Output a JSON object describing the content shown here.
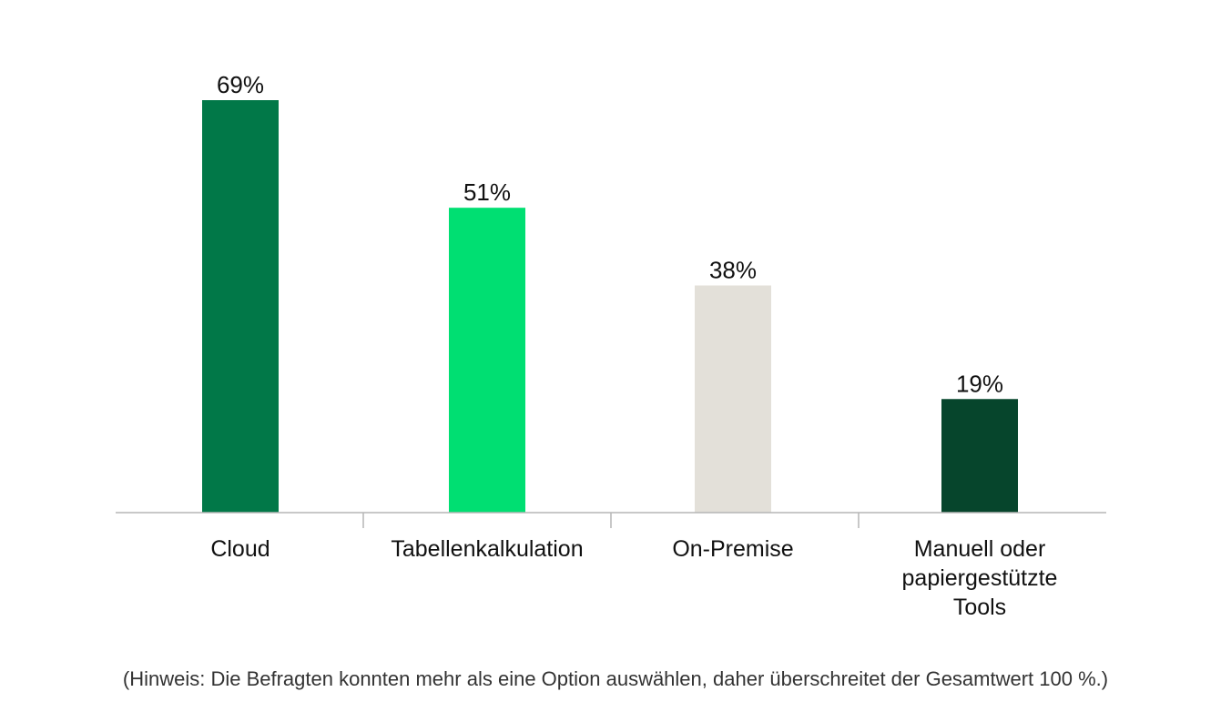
{
  "chart_data": {
    "type": "bar",
    "title": "",
    "xlabel": "",
    "ylabel": "",
    "ylim": [
      0,
      69
    ],
    "grid": false,
    "unit": "%",
    "categories": [
      "Cloud",
      "Tabellenkalkulation",
      "On-Premise",
      "Manuell oder papiergestützte Tools"
    ],
    "category_lines": [
      [
        "Cloud"
      ],
      [
        "Tabellenkalkulation"
      ],
      [
        "On-Premise"
      ],
      [
        "Manuell oder",
        "papiergestützte",
        "Tools"
      ]
    ],
    "values": [
      69,
      51,
      38,
      19
    ],
    "value_labels": [
      "69%",
      "51%",
      "38%",
      "19%"
    ],
    "colors": [
      "#017848",
      "#00DF72",
      "#E3E0D9",
      "#06452C"
    ]
  },
  "note": "(Hinweis: Die Befragten konnten mehr als eine Option auswählen, daher überschreitet der Gesamtwert 100 %.)"
}
